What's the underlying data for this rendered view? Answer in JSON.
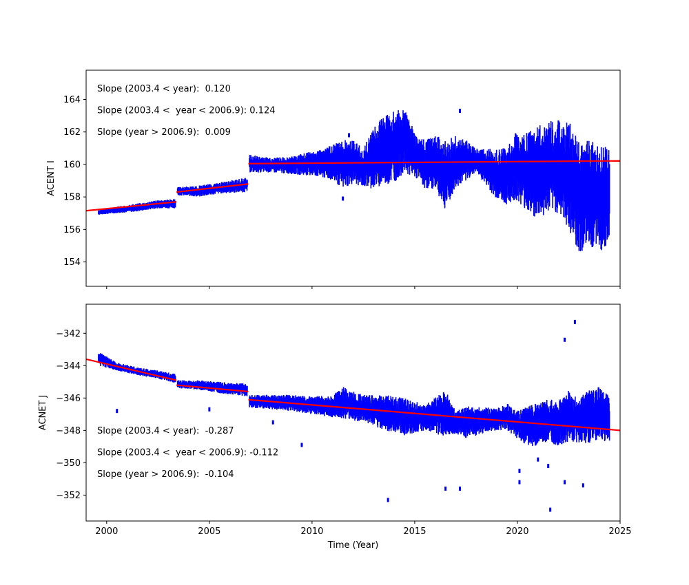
{
  "chart_data": [
    {
      "type": "scatter",
      "ylabel": "ACENT I",
      "xlabel": "",
      "xlim": [
        1999,
        2025
      ],
      "ylim": [
        152.5,
        165.8
      ],
      "xticks": [
        2000,
        2005,
        2010,
        2015,
        2020,
        2025
      ],
      "yticks": [
        154,
        156,
        158,
        160,
        162,
        164
      ],
      "show_xtick_labels": false,
      "grid": false,
      "colors": {
        "data": "#0000ff",
        "fit": "#ff0000"
      },
      "annotations": [
        "Slope (2003.4 < year):  0.120",
        "Slope (2003.4 <  year < 2006.9): 0.124",
        "Slope (year > 2006.9):  0.009"
      ],
      "bands": [
        {
          "x": 1999.6,
          "lo": 156.9,
          "hi": 157.2
        },
        {
          "x": 2000.5,
          "lo": 157.0,
          "hi": 157.4
        },
        {
          "x": 2001.5,
          "lo": 157.1,
          "hi": 157.6
        },
        {
          "x": 2002.5,
          "lo": 157.3,
          "hi": 157.8
        },
        {
          "x": 2003.35,
          "lo": 157.3,
          "hi": 157.9
        },
        {
          "x": 2003.45,
          "lo": 158.1,
          "hi": 158.6
        },
        {
          "x": 2004.5,
          "lo": 158.0,
          "hi": 158.7
        },
        {
          "x": 2005.5,
          "lo": 158.2,
          "hi": 158.9
        },
        {
          "x": 2006.85,
          "lo": 158.3,
          "hi": 159.2
        },
        {
          "x": 2006.95,
          "lo": 159.5,
          "hi": 160.6
        },
        {
          "x": 2008.0,
          "lo": 159.5,
          "hi": 160.4
        },
        {
          "x": 2009.0,
          "lo": 159.4,
          "hi": 160.5
        },
        {
          "x": 2010.0,
          "lo": 159.3,
          "hi": 160.8
        },
        {
          "x": 2011.0,
          "lo": 159.0,
          "hi": 161.2
        },
        {
          "x": 2011.5,
          "lo": 158.5,
          "hi": 161.5
        },
        {
          "x": 2012.0,
          "lo": 158.8,
          "hi": 161.5
        },
        {
          "x": 2012.5,
          "lo": 158.6,
          "hi": 161.0
        },
        {
          "x": 2013.0,
          "lo": 158.5,
          "hi": 162.3
        },
        {
          "x": 2013.5,
          "lo": 158.7,
          "hi": 163.0
        },
        {
          "x": 2014.0,
          "lo": 158.9,
          "hi": 163.3
        },
        {
          "x": 2014.5,
          "lo": 159.5,
          "hi": 163.4
        },
        {
          "x": 2015.0,
          "lo": 159.2,
          "hi": 162.0
        },
        {
          "x": 2015.5,
          "lo": 158.5,
          "hi": 161.5
        },
        {
          "x": 2016.0,
          "lo": 158.5,
          "hi": 161.8
        },
        {
          "x": 2016.5,
          "lo": 157.2,
          "hi": 161.5
        },
        {
          "x": 2017.0,
          "lo": 158.5,
          "hi": 161.8
        },
        {
          "x": 2017.5,
          "lo": 159.0,
          "hi": 161.5
        },
        {
          "x": 2018.0,
          "lo": 159.5,
          "hi": 161.0
        },
        {
          "x": 2019.0,
          "lo": 157.8,
          "hi": 161.0
        },
        {
          "x": 2019.5,
          "lo": 157.5,
          "hi": 161.0
        },
        {
          "x": 2020.0,
          "lo": 157.8,
          "hi": 162.2
        },
        {
          "x": 2020.5,
          "lo": 157.0,
          "hi": 162.0
        },
        {
          "x": 2021.0,
          "lo": 156.6,
          "hi": 162.5
        },
        {
          "x": 2021.5,
          "lo": 157.0,
          "hi": 162.8
        },
        {
          "x": 2022.0,
          "lo": 157.0,
          "hi": 162.8
        },
        {
          "x": 2022.5,
          "lo": 156.0,
          "hi": 162.8
        },
        {
          "x": 2023.0,
          "lo": 154.5,
          "hi": 161.5
        },
        {
          "x": 2023.5,
          "lo": 155.0,
          "hi": 161.5
        },
        {
          "x": 2024.0,
          "lo": 154.5,
          "hi": 161.3
        },
        {
          "x": 2024.5,
          "lo": 155.3,
          "hi": 161.0
        }
      ],
      "outliers": [
        {
          "x": 2011.8,
          "y": 161.8
        },
        {
          "x": 2017.2,
          "y": 163.3
        },
        {
          "x": 2011.5,
          "y": 157.9
        }
      ],
      "fit_segments": [
        {
          "x0": 1999.0,
          "y0": 157.15,
          "x1": 2003.4,
          "y1": 157.7
        },
        {
          "x0": 2003.4,
          "y0": 158.3,
          "x1": 2006.9,
          "y1": 158.8
        },
        {
          "x0": 2006.9,
          "y0": 160.05,
          "x1": 2025.0,
          "y1": 160.22
        }
      ]
    },
    {
      "type": "scatter",
      "ylabel": "ACNET J",
      "xlabel": "Time (Year)",
      "xlim": [
        1999,
        2025
      ],
      "ylim": [
        -353.6,
        -340.2
      ],
      "xticks": [
        2000,
        2005,
        2010,
        2015,
        2020,
        2025
      ],
      "yticks": [
        -352,
        -350,
        -348,
        -346,
        -344,
        -342
      ],
      "show_xtick_labels": true,
      "grid": false,
      "colors": {
        "data": "#0000ff",
        "fit": "#ff0000"
      },
      "annotations": [
        "Slope (2003.4 < year):  -0.287",
        "Slope (2003.4 <  year < 2006.9): -0.112",
        "Slope (year > 2006.9):  -0.104"
      ],
      "bands": [
        {
          "x": 1999.6,
          "lo": -344.0,
          "hi": -343.1
        },
        {
          "x": 2000.5,
          "lo": -344.3,
          "hi": -343.8
        },
        {
          "x": 2001.5,
          "lo": -344.6,
          "hi": -344.1
        },
        {
          "x": 2002.5,
          "lo": -344.8,
          "hi": -344.3
        },
        {
          "x": 2003.35,
          "lo": -345.1,
          "hi": -344.5
        },
        {
          "x": 2003.45,
          "lo": -345.4,
          "hi": -344.9
        },
        {
          "x": 2004.5,
          "lo": -345.5,
          "hi": -344.9
        },
        {
          "x": 2005.5,
          "lo": -345.7,
          "hi": -345.0
        },
        {
          "x": 2006.85,
          "lo": -345.9,
          "hi": -345.1
        },
        {
          "x": 2006.95,
          "lo": -346.6,
          "hi": -345.8
        },
        {
          "x": 2008.0,
          "lo": -346.7,
          "hi": -345.8
        },
        {
          "x": 2009.0,
          "lo": -346.8,
          "hi": -345.8
        },
        {
          "x": 2010.0,
          "lo": -347.0,
          "hi": -345.9
        },
        {
          "x": 2011.0,
          "lo": -347.2,
          "hi": -345.8
        },
        {
          "x": 2011.5,
          "lo": -347.3,
          "hi": -345.3
        },
        {
          "x": 2012.5,
          "lo": -347.5,
          "hi": -345.8
        },
        {
          "x": 2013.5,
          "lo": -348.0,
          "hi": -345.8
        },
        {
          "x": 2014.5,
          "lo": -348.3,
          "hi": -346.0
        },
        {
          "x": 2015.5,
          "lo": -348.0,
          "hi": -346.4
        },
        {
          "x": 2016.5,
          "lo": -348.4,
          "hi": -345.5
        },
        {
          "x": 2017.0,
          "lo": -348.2,
          "hi": -346.8
        },
        {
          "x": 2017.5,
          "lo": -348.5,
          "hi": -346.5
        },
        {
          "x": 2019.0,
          "lo": -348.0,
          "hi": -346.6
        },
        {
          "x": 2019.5,
          "lo": -348.0,
          "hi": -346.3
        },
        {
          "x": 2020.0,
          "lo": -348.5,
          "hi": -346.8
        },
        {
          "x": 2020.5,
          "lo": -349.0,
          "hi": -346.5
        },
        {
          "x": 2021.0,
          "lo": -349.0,
          "hi": -346.3
        },
        {
          "x": 2021.5,
          "lo": -348.8,
          "hi": -346.0
        },
        {
          "x": 2022.0,
          "lo": -349.0,
          "hi": -346.2
        },
        {
          "x": 2022.5,
          "lo": -348.8,
          "hi": -345.5
        },
        {
          "x": 2023.0,
          "lo": -348.8,
          "hi": -346.0
        },
        {
          "x": 2023.5,
          "lo": -348.8,
          "hi": -345.5
        },
        {
          "x": 2024.0,
          "lo": -348.7,
          "hi": -345.3
        },
        {
          "x": 2024.5,
          "lo": -348.7,
          "hi": -345.9
        }
      ],
      "outliers": [
        {
          "x": 2000.5,
          "y": -346.8
        },
        {
          "x": 2005.0,
          "y": -346.7
        },
        {
          "x": 2009.5,
          "y": -348.9
        },
        {
          "x": 2008.1,
          "y": -347.5
        },
        {
          "x": 2013.7,
          "y": -352.3
        },
        {
          "x": 2016.5,
          "y": -351.6
        },
        {
          "x": 2017.2,
          "y": -351.6
        },
        {
          "x": 2020.1,
          "y": -350.5
        },
        {
          "x": 2020.1,
          "y": -351.2
        },
        {
          "x": 2021.0,
          "y": -349.8
        },
        {
          "x": 2021.5,
          "y": -350.2
        },
        {
          "x": 2021.6,
          "y": -352.9
        },
        {
          "x": 2022.3,
          "y": -351.2
        },
        {
          "x": 2022.3,
          "y": -342.4
        },
        {
          "x": 2022.8,
          "y": -341.3
        },
        {
          "x": 2023.2,
          "y": -351.4
        }
      ],
      "fit_segments": [
        {
          "x0": 1999.0,
          "y0": -343.6,
          "x1": 2003.4,
          "y1": -344.9
        },
        {
          "x0": 2003.4,
          "y0": -345.2,
          "x1": 2006.9,
          "y1": -345.6
        },
        {
          "x0": 2006.9,
          "y0": -346.1,
          "x1": 2025.0,
          "y1": -348.0
        }
      ]
    }
  ]
}
